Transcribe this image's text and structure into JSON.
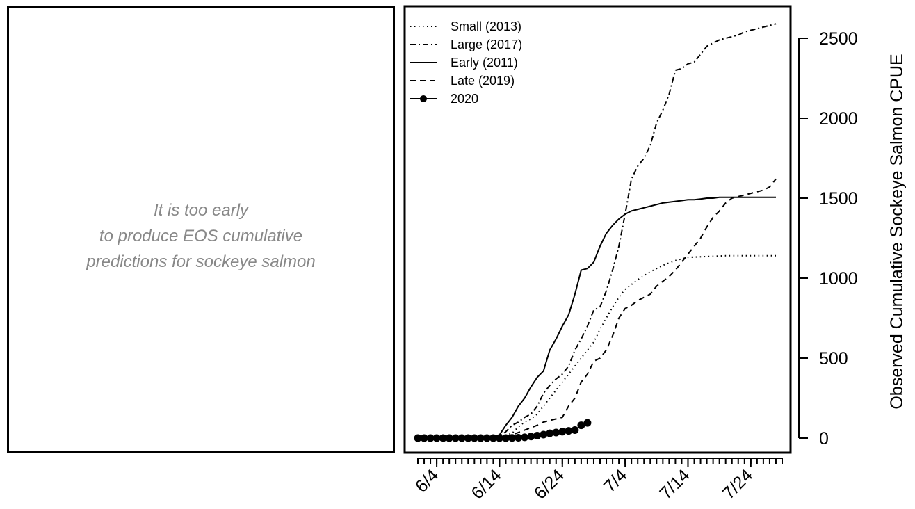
{
  "left_panel": {
    "message_lines": [
      "It is too early",
      "to produce EOS cumulative",
      "predictions for sockeye salmon"
    ],
    "text_color": "#888888"
  },
  "chart_data": {
    "type": "line",
    "title": "",
    "xlabel": "",
    "ylabel": "Observed Cumulative Sockeye Salmon CPUE",
    "xlim": [
      "2020-06-01",
      "2020-07-29"
    ],
    "ylim": [
      0,
      2600
    ],
    "x_tick_labels": [
      "6/4",
      "6/14",
      "6/24",
      "7/4",
      "7/14",
      "7/24"
    ],
    "y_ticks": [
      0,
      500,
      1000,
      1500,
      2000,
      2500
    ],
    "y_axis_side": "right",
    "grid": false,
    "legend_position": "top-left",
    "series": [
      {
        "name": "Small (2013)",
        "line_style": "dotted",
        "color": "#000000",
        "x": [
          "06-01",
          "06-14",
          "06-16",
          "06-17",
          "06-18",
          "06-19",
          "06-20",
          "06-21",
          "06-22",
          "06-23",
          "06-24",
          "06-25",
          "06-26",
          "06-27",
          "06-28",
          "06-29",
          "06-30",
          "07-01",
          "07-02",
          "07-03",
          "07-04",
          "07-06",
          "07-08",
          "07-10",
          "07-12",
          "07-14",
          "07-17",
          "07-20",
          "07-23",
          "07-26",
          "07-28"
        ],
        "values": [
          0,
          5,
          30,
          70,
          100,
          120,
          150,
          200,
          250,
          300,
          350,
          400,
          450,
          500,
          550,
          600,
          680,
          750,
          820,
          880,
          930,
          990,
          1040,
          1080,
          1110,
          1130,
          1135,
          1140,
          1140,
          1140,
          1140
        ]
      },
      {
        "name": "Large (2017)",
        "line_style": "dashdot",
        "color": "#000000",
        "x": [
          "06-01",
          "06-14",
          "06-15",
          "06-16",
          "06-17",
          "06-18",
          "06-19",
          "06-20",
          "06-21",
          "06-22",
          "06-23",
          "06-24",
          "06-25",
          "06-26",
          "06-27",
          "06-28",
          "06-29",
          "06-30",
          "07-01",
          "07-02",
          "07-03",
          "07-04",
          "07-05",
          "07-06",
          "07-07",
          "07-08",
          "07-09",
          "07-10",
          "07-11",
          "07-12",
          "07-13",
          "07-14",
          "07-15",
          "07-16",
          "07-17",
          "07-18",
          "07-19",
          "07-20",
          "07-21",
          "07-22",
          "07-23",
          "07-24",
          "07-25",
          "07-26",
          "07-27",
          "07-28"
        ],
        "values": [
          0,
          10,
          40,
          80,
          100,
          130,
          150,
          200,
          280,
          330,
          370,
          400,
          450,
          550,
          620,
          700,
          800,
          820,
          920,
          1050,
          1200,
          1400,
          1620,
          1700,
          1750,
          1830,
          1970,
          2050,
          2150,
          2300,
          2310,
          2340,
          2350,
          2400,
          2450,
          2470,
          2490,
          2500,
          2510,
          2520,
          2540,
          2550,
          2560,
          2570,
          2580,
          2590
        ]
      },
      {
        "name": "Early (2011)",
        "line_style": "solid",
        "color": "#000000",
        "x": [
          "06-01",
          "06-13",
          "06-14",
          "06-15",
          "06-16",
          "06-17",
          "06-18",
          "06-19",
          "06-20",
          "06-21",
          "06-22",
          "06-23",
          "06-24",
          "06-25",
          "06-26",
          "06-27",
          "06-28",
          "06-29",
          "06-30",
          "07-01",
          "07-02",
          "07-03",
          "07-04",
          "07-05",
          "07-06",
          "07-07",
          "07-08",
          "07-09",
          "07-10",
          "07-11",
          "07-12",
          "07-13",
          "07-14",
          "07-15",
          "07-16",
          "07-17",
          "07-18",
          "07-19",
          "07-20",
          "07-22",
          "07-24",
          "07-26",
          "07-28"
        ],
        "values": [
          0,
          5,
          20,
          80,
          130,
          200,
          250,
          320,
          380,
          420,
          550,
          620,
          700,
          770,
          900,
          1050,
          1060,
          1100,
          1200,
          1280,
          1330,
          1370,
          1400,
          1420,
          1430,
          1440,
          1450,
          1460,
          1470,
          1475,
          1480,
          1485,
          1490,
          1490,
          1495,
          1500,
          1500,
          1505,
          1505,
          1505,
          1505,
          1505,
          1505
        ]
      },
      {
        "name": "Late (2019)",
        "line_style": "dashed",
        "color": "#000000",
        "x": [
          "06-01",
          "06-14",
          "06-16",
          "06-18",
          "06-20",
          "06-21",
          "06-22",
          "06-23",
          "06-24",
          "06-25",
          "06-26",
          "06-27",
          "06-28",
          "06-29",
          "06-30",
          "07-01",
          "07-02",
          "07-03",
          "07-04",
          "07-05",
          "07-06",
          "07-07",
          "07-08",
          "07-09",
          "07-10",
          "07-11",
          "07-12",
          "07-13",
          "07-14",
          "07-15",
          "07-16",
          "07-17",
          "07-18",
          "07-19",
          "07-20",
          "07-21",
          "07-22",
          "07-23",
          "07-24",
          "07-25",
          "07-26",
          "07-27",
          "07-28"
        ],
        "values": [
          0,
          5,
          20,
          50,
          80,
          100,
          110,
          120,
          130,
          200,
          250,
          350,
          400,
          480,
          500,
          550,
          640,
          750,
          810,
          830,
          860,
          880,
          900,
          950,
          980,
          1010,
          1050,
          1100,
          1150,
          1200,
          1250,
          1320,
          1380,
          1420,
          1470,
          1500,
          1510,
          1520,
          1530,
          1540,
          1550,
          1570,
          1620
        ]
      },
      {
        "name": "2020",
        "line_style": "solid-points",
        "color": "#000000",
        "x": [
          "06-01",
          "06-02",
          "06-03",
          "06-04",
          "06-05",
          "06-06",
          "06-07",
          "06-08",
          "06-09",
          "06-10",
          "06-11",
          "06-12",
          "06-13",
          "06-14",
          "06-15",
          "06-16",
          "06-17",
          "06-18",
          "06-19",
          "06-20",
          "06-21",
          "06-22",
          "06-23",
          "06-24",
          "06-25",
          "06-26",
          "06-27",
          "06-28"
        ],
        "values": [
          0,
          0,
          0,
          0,
          0,
          0,
          0,
          0,
          0,
          0,
          0,
          0,
          0,
          0,
          0,
          1,
          2,
          5,
          10,
          15,
          22,
          30,
          35,
          40,
          45,
          50,
          80,
          95
        ]
      }
    ]
  }
}
